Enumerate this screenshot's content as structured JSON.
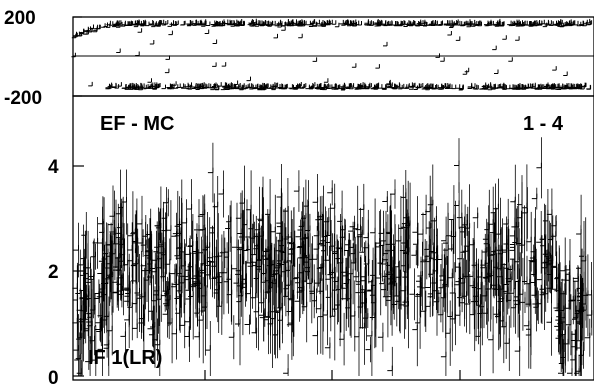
{
  "chart_data": [
    {
      "type": "scatter",
      "panel": "phase",
      "title": "",
      "xlabel": "",
      "ylabel": "",
      "ylim": [
        -200,
        200
      ],
      "yticks": [
        200,
        -200
      ],
      "ytick_labels": [
        "200",
        "-200"
      ],
      "reference_lines": [
        0
      ],
      "series": [
        {
          "name": "",
          "description_level_top": 160,
          "description_level_bottom": -160
        }
      ]
    },
    {
      "type": "scatter",
      "panel": "amplitude",
      "title": "",
      "xlabel": "",
      "ylabel": "",
      "ylim": [
        0,
        5.2
      ],
      "yticks": [
        0,
        2,
        4
      ],
      "ytick_labels": [
        "0",
        "2",
        "4"
      ],
      "annotations": {
        "top_left": "EF - MC",
        "top_right": "1 - 4",
        "bottom_left": "IF 1(LR)"
      },
      "series": [
        {
          "name": "",
          "mean_level": 2.0,
          "spread": 1.2
        }
      ]
    }
  ]
}
